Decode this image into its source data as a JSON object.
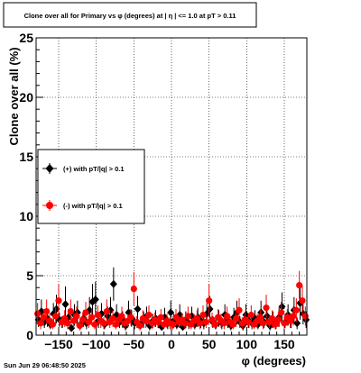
{
  "title": "Clone  over all for Primary vs φ (degrees) at |  η  | <= 1.0 at pT > 0.11",
  "footer_timestamp": "Sun Jun 29 06:48:50 2025",
  "colors": {
    "series_plus": "#000000",
    "series_minus": "#ff0000",
    "grid": "#000000",
    "frame": "#000000"
  },
  "chart_data": {
    "type": "scatter",
    "title": "Clone  over all for Primary vs φ (degrees) at |  η  | <= 1.0 at pT > 0.11",
    "xlabel": "φ (degrees)",
    "ylabel": "Clone  over all (%)",
    "xlim": [
      -180,
      180
    ],
    "ylim": [
      0,
      25
    ],
    "xticks": [
      -150,
      -100,
      -50,
      0,
      50,
      100,
      150
    ],
    "xtick_labels": [
      "−150",
      "−100",
      "−50",
      "0",
      "50",
      "100",
      "150"
    ],
    "yticks": [
      0,
      5,
      10,
      15,
      20,
      25
    ],
    "ytick_labels": [
      "0",
      "5",
      "10",
      "15",
      "20",
      "25"
    ],
    "grid": true,
    "legend_position": "left, middle",
    "series": [
      {
        "name": "(+) with pT/|q| > 0.1",
        "marker": "diamond",
        "x": [
          -177,
          -173,
          -169,
          -165,
          -161,
          -157,
          -153,
          -149,
          -145,
          -141,
          -137,
          -133,
          -129,
          -125,
          -121,
          -117,
          -113,
          -109,
          -105,
          -101,
          -97,
          -93,
          -89,
          -85,
          -81,
          -77,
          -73,
          -69,
          -65,
          -61,
          -57,
          -53,
          -49,
          -45,
          -41,
          -37,
          -33,
          -29,
          -25,
          -21,
          -17,
          -13,
          -9,
          -5,
          -1,
          3,
          7,
          11,
          15,
          19,
          23,
          27,
          31,
          35,
          39,
          43,
          47,
          51,
          55,
          59,
          63,
          67,
          71,
          75,
          79,
          83,
          87,
          91,
          95,
          99,
          103,
          107,
          111,
          115,
          119,
          123,
          127,
          131,
          135,
          139,
          143,
          147,
          151,
          155,
          159,
          163,
          167,
          171,
          175,
          179
        ],
        "y": [
          1.3,
          2.0,
          1.1,
          1.4,
          0.9,
          1.8,
          2.2,
          1.3,
          1.1,
          2.6,
          1.5,
          0.6,
          1.7,
          1.9,
          0.9,
          1.4,
          1.0,
          2.1,
          2.8,
          3.0,
          1.2,
          1.8,
          0.9,
          1.6,
          2.1,
          4.3,
          1.7,
          1.1,
          1.3,
          0.8,
          1.9,
          1.4,
          1.0,
          2.2,
          0.9,
          1.3,
          1.6,
          0.8,
          1.2,
          1.4,
          1.1,
          0.7,
          1.5,
          1.0,
          1.9,
          1.2,
          0.9,
          1.7,
          0.7,
          1.3,
          1.0,
          1.6,
          0.9,
          1.5,
          1.2,
          1.0,
          1.8,
          2.2,
          1.1,
          0.9,
          1.4,
          1.0,
          1.7,
          1.2,
          0.8,
          1.5,
          1.9,
          1.1,
          0.8,
          1.7,
          1.2,
          1.0,
          1.4,
          0.9,
          1.9,
          1.1,
          1.6,
          0.8,
          1.3,
          1.0,
          1.5,
          2.4,
          1.1,
          1.7,
          1.2,
          2.1,
          1.0,
          2.7,
          1.8,
          1.3
        ],
        "err": [
          0.6,
          1.0,
          0.5,
          0.7,
          0.4,
          0.9,
          1.2,
          0.6,
          0.5,
          1.5,
          0.7,
          0.3,
          0.9,
          1.0,
          0.4,
          0.7,
          0.5,
          1.1,
          1.5,
          1.5,
          0.6,
          0.9,
          0.4,
          0.8,
          1.1,
          1.4,
          0.9,
          0.5,
          0.7,
          0.4,
          1.0,
          0.7,
          0.5,
          1.1,
          0.4,
          0.7,
          0.8,
          0.4,
          0.6,
          0.7,
          0.5,
          0.3,
          0.8,
          0.5,
          1.0,
          0.6,
          0.4,
          0.9,
          0.3,
          0.7,
          0.5,
          0.8,
          0.4,
          0.8,
          0.6,
          0.5,
          0.9,
          1.1,
          0.5,
          0.4,
          0.7,
          0.5,
          0.9,
          0.6,
          0.4,
          0.8,
          1.0,
          0.5,
          0.4,
          0.9,
          0.6,
          0.5,
          0.7,
          0.4,
          1.0,
          0.5,
          0.8,
          0.4,
          0.7,
          0.5,
          0.8,
          1.2,
          0.5,
          0.9,
          0.6,
          1.1,
          0.5,
          1.4,
          0.9,
          0.7
        ]
      },
      {
        "name": "(-) with pT/|q| > 0.1",
        "marker": "circle",
        "x": [
          -178,
          -174,
          -170,
          -166,
          -162,
          -158,
          -154,
          -150,
          -146,
          -142,
          -138,
          -134,
          -130,
          -126,
          -122,
          -118,
          -114,
          -110,
          -106,
          -102,
          -98,
          -94,
          -90,
          -86,
          -82,
          -78,
          -74,
          -70,
          -66,
          -62,
          -58,
          -54,
          -50,
          -46,
          -42,
          -38,
          -34,
          -30,
          -26,
          -22,
          -18,
          -14,
          -10,
          -6,
          -2,
          2,
          6,
          10,
          14,
          18,
          22,
          26,
          30,
          34,
          38,
          42,
          46,
          50,
          54,
          58,
          62,
          66,
          70,
          74,
          78,
          82,
          86,
          90,
          94,
          98,
          102,
          106,
          110,
          114,
          118,
          122,
          126,
          130,
          134,
          138,
          142,
          146,
          150,
          154,
          158,
          162,
          166,
          170,
          174,
          178
        ],
        "y": [
          1.8,
          1.0,
          1.5,
          2.0,
          1.2,
          0.9,
          1.6,
          2.9,
          1.1,
          1.4,
          1.0,
          2.0,
          1.2,
          1.6,
          0.8,
          1.3,
          1.9,
          1.1,
          1.5,
          0.9,
          1.7,
          1.2,
          1.0,
          2.0,
          1.1,
          1.4,
          0.9,
          1.3,
          1.6,
          1.0,
          1.2,
          1.5,
          3.9,
          1.1,
          0.8,
          1.4,
          1.2,
          1.7,
          1.0,
          1.3,
          1.1,
          1.5,
          0.9,
          1.2,
          1.0,
          0.9,
          1.5,
          1.1,
          1.3,
          1.0,
          1.6,
          0.9,
          1.2,
          1.4,
          1.0,
          1.7,
          1.1,
          2.9,
          1.3,
          0.9,
          1.5,
          1.2,
          1.0,
          1.6,
          1.1,
          0.9,
          1.4,
          2.1,
          1.0,
          1.3,
          1.1,
          1.7,
          0.9,
          1.2,
          1.5,
          1.0,
          2.3,
          1.1,
          1.4,
          0.9,
          1.3,
          1.9,
          1.0,
          1.5,
          1.2,
          1.6,
          2.1,
          4.2,
          2.9,
          1.6
        ],
        "err": [
          0.9,
          0.5,
          0.7,
          1.0,
          0.6,
          0.4,
          0.8,
          1.4,
          0.5,
          0.7,
          0.5,
          1.0,
          0.6,
          0.8,
          0.4,
          0.6,
          0.9,
          0.5,
          0.7,
          0.4,
          0.8,
          0.6,
          0.5,
          1.0,
          0.5,
          0.7,
          0.4,
          0.6,
          0.8,
          0.5,
          0.6,
          0.7,
          1.4,
          0.5,
          0.4,
          0.7,
          0.6,
          0.8,
          0.5,
          0.6,
          0.5,
          0.7,
          0.4,
          0.6,
          0.5,
          0.4,
          0.7,
          0.5,
          0.6,
          0.5,
          0.8,
          0.4,
          0.6,
          0.7,
          0.5,
          0.8,
          0.5,
          1.4,
          0.6,
          0.4,
          0.7,
          0.6,
          0.5,
          0.8,
          0.5,
          0.4,
          0.7,
          1.0,
          0.5,
          0.6,
          0.5,
          0.8,
          0.4,
          0.6,
          0.7,
          0.5,
          1.1,
          0.5,
          0.7,
          0.4,
          0.6,
          0.9,
          0.5,
          0.7,
          0.6,
          0.8,
          1.0,
          1.2,
          1.3,
          0.8
        ]
      }
    ]
  }
}
